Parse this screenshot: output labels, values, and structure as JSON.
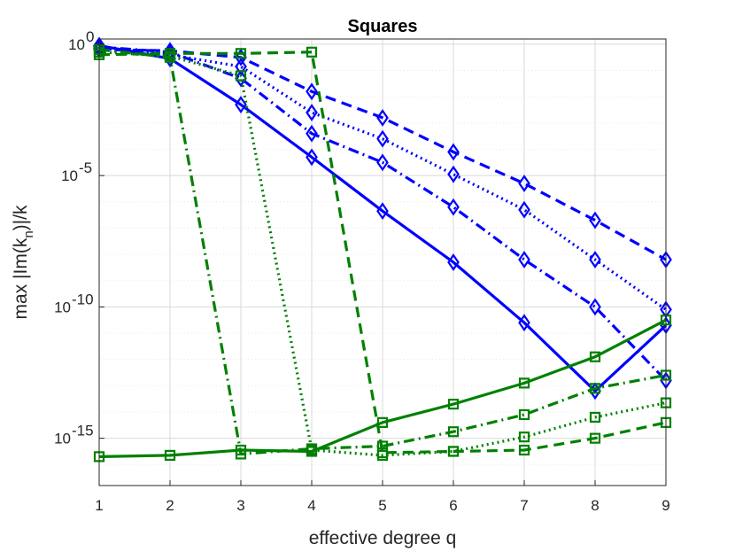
{
  "chart_data": {
    "type": "line",
    "title": "Squares",
    "xlabel": "effective degree q",
    "ylabel": "max |Im(k_n)|/k",
    "ylabel_main": "max |Im(k",
    "ylabel_sub": "n",
    "ylabel_tail": ")|/k",
    "yscale": "log",
    "xlim": [
      1,
      9
    ],
    "ylim_log10": [
      -16.8,
      0.2
    ],
    "grid": true,
    "x_ticks": [
      "1",
      "2",
      "3",
      "4",
      "5",
      "6",
      "7",
      "8",
      "9"
    ],
    "y_ticks": [
      {
        "base": "10",
        "exp": "0",
        "log10": 0
      },
      {
        "base": "10",
        "exp": "-5",
        "log10": -5
      },
      {
        "base": "10",
        "exp": "-10",
        "log10": -10
      },
      {
        "base": "10",
        "exp": "-15",
        "log10": -15
      }
    ],
    "series": [
      {
        "color": "#0000ff",
        "style": "solid",
        "marker": "diamond",
        "x": [
          1,
          2,
          3,
          4,
          5,
          6,
          7,
          8,
          9
        ],
        "y_log10": [
          -0.05,
          -0.55,
          -2.3,
          -4.3,
          -6.35,
          -8.3,
          -10.6,
          -13.2,
          -10.7
        ]
      },
      {
        "color": "#0000ff",
        "style": "dashdot",
        "marker": "diamond",
        "x": [
          1,
          2,
          3,
          4,
          5,
          6,
          7,
          8,
          9
        ],
        "y_log10": [
          -0.1,
          -0.3,
          -1.3,
          -3.4,
          -4.5,
          -6.2,
          -8.2,
          -10.0,
          -12.8
        ]
      },
      {
        "color": "#0000ff",
        "style": "dotted",
        "marker": "diamond",
        "x": [
          1,
          2,
          3,
          4,
          5,
          6,
          7,
          8,
          9
        ],
        "y_log10": [
          -0.15,
          -0.4,
          -0.85,
          -2.6,
          -3.6,
          -4.95,
          -6.3,
          -8.2,
          -10.1
        ]
      },
      {
        "color": "#0000ff",
        "style": "dashed",
        "marker": "diamond",
        "x": [
          1,
          2,
          3,
          4,
          5,
          6,
          7,
          8,
          9
        ],
        "y_log10": [
          -0.2,
          -0.25,
          -0.5,
          -1.8,
          -2.8,
          -4.1,
          -5.3,
          -6.7,
          -8.2
        ]
      },
      {
        "color": "#008000",
        "style": "solid",
        "marker": "square",
        "x": [
          1,
          2,
          3,
          4,
          5,
          6,
          7,
          8,
          9
        ],
        "y_log10": [
          -15.7,
          -15.65,
          -15.45,
          -15.5,
          -14.4,
          -13.7,
          -12.9,
          -11.9,
          -10.5
        ]
      },
      {
        "color": "#008000",
        "style": "dashdot",
        "marker": "square",
        "x": [
          1,
          2,
          3,
          4,
          5,
          6,
          7,
          8,
          9
        ],
        "y_log10": [
          -0.2,
          -0.5,
          -15.6,
          -15.4,
          -15.3,
          -14.75,
          -14.1,
          -13.1,
          -12.6
        ]
      },
      {
        "color": "#008000",
        "style": "dotted",
        "marker": "square",
        "x": [
          1,
          2,
          3,
          4,
          5,
          6,
          7,
          8,
          9
        ],
        "y_log10": [
          -0.3,
          -0.45,
          -1.2,
          -15.45,
          -15.65,
          -15.5,
          -14.95,
          -14.2,
          -13.65
        ]
      },
      {
        "color": "#008000",
        "style": "dashed",
        "marker": "square",
        "x": [
          1,
          2,
          3,
          4,
          5,
          6,
          7,
          8,
          9
        ],
        "y_log10": [
          -0.4,
          -0.35,
          -0.35,
          -0.3,
          -15.55,
          -15.5,
          -15.45,
          -15.0,
          -14.4
        ]
      }
    ]
  }
}
